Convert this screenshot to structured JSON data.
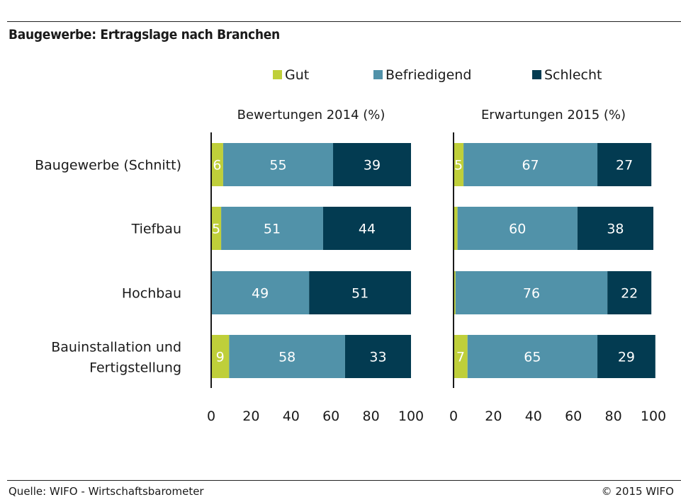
{
  "header": {
    "title": "Baugewerbe: Ertragslage nach Branchen"
  },
  "footer": {
    "source": "Quelle: WIFO - Wirtschaftsbarometer",
    "copyright": "© 2015 WIFO"
  },
  "colors": {
    "gut": "#bfcf3a",
    "befriedigend": "#5192a9",
    "schlecht": "#033b51"
  },
  "chart_data": {
    "type": "bar",
    "orientation": "horizontal",
    "stacked": true,
    "legend": [
      "Gut",
      "Befriedigend",
      "Schlecht"
    ],
    "legend_position": "top",
    "categories": [
      "Baugewerbe (Schnitt)",
      "Tiefbau",
      "Hochbau",
      "Bauinstallation und Fertigstellung"
    ],
    "xlim": [
      0,
      100
    ],
    "xticks": [
      0,
      20,
      40,
      60,
      80,
      100
    ],
    "grid": false,
    "panels": [
      {
        "title": "Bewertungen 2014 (%)",
        "series": [
          {
            "name": "Gut",
            "values": [
              6,
              5,
              0,
              9
            ],
            "labels": [
              "6",
              "5",
              "",
              "9"
            ]
          },
          {
            "name": "Befriedigend",
            "values": [
              55,
              51,
              49,
              58
            ],
            "labels": [
              "55",
              "51",
              "49",
              "58"
            ]
          },
          {
            "name": "Schlecht",
            "values": [
              39,
              44,
              51,
              33
            ],
            "labels": [
              "39",
              "44",
              "51",
              "33"
            ]
          }
        ]
      },
      {
        "title": "Erwartungen 2015 (%)",
        "series": [
          {
            "name": "Gut",
            "values": [
              5,
              2,
              1,
              7
            ],
            "labels": [
              "5",
              "",
              "",
              "7"
            ]
          },
          {
            "name": "Befriedigend",
            "values": [
              67,
              60,
              76,
              65
            ],
            "labels": [
              "67",
              "60",
              "76",
              "65"
            ]
          },
          {
            "name": "Schlecht",
            "values": [
              27,
              38,
              22,
              29
            ],
            "labels": [
              "27",
              "38",
              "22",
              "29"
            ]
          }
        ]
      }
    ]
  }
}
